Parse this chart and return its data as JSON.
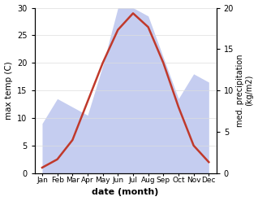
{
  "months": [
    "Jan",
    "Feb",
    "Mar",
    "Apr",
    "May",
    "Jun",
    "Jul",
    "Aug",
    "Sep",
    "Oct",
    "Nov",
    "Dec"
  ],
  "temperature": [
    1,
    2.5,
    6,
    13,
    20,
    26,
    29,
    26.5,
    20,
    12,
    5,
    2
  ],
  "precipitation": [
    6,
    9,
    8,
    7,
    13,
    20,
    20,
    19,
    14,
    9,
    12,
    11
  ],
  "temp_color": "#c0392b",
  "precip_fill_color": "#c5cdf0",
  "precip_edge_color": "#c5cdf0",
  "temp_ylim": [
    0,
    30
  ],
  "precip_ylim": [
    0,
    20
  ],
  "temp_yticks": [
    0,
    5,
    10,
    15,
    20,
    25,
    30
  ],
  "precip_yticks": [
    0,
    5,
    10,
    15,
    20
  ],
  "xlabel": "date (month)",
  "ylabel_left": "max temp (C)",
  "ylabel_right": "med. precipitation\n(kg/m2)",
  "background_color": "#ffffff",
  "line_width": 1.8
}
